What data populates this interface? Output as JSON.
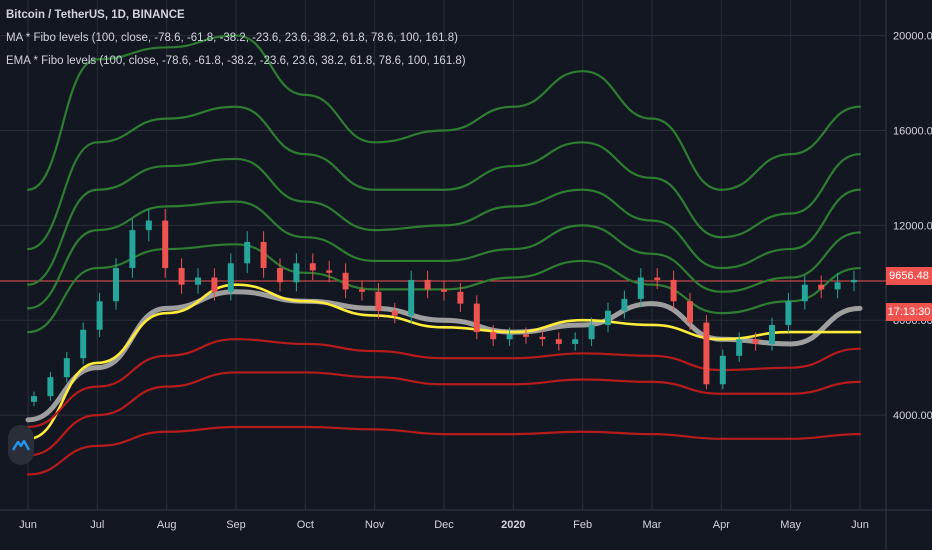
{
  "header": {
    "symbol_title": "Bitcoin / TetherUS, 1D, BINANCE",
    "indicator_ma": "MA * Fibo levels (100, close, -78.6, -61.8, -38.2, -23.6, 23.6, 38.2, 61.8, 78.6, 100, 161.8)",
    "indicator_ema": "EMA * Fibo levels (100, close, -78.6, -61.8, -38.2, -23.6, 23.6, 38.2, 61.8, 78.6, 100, 161.8)"
  },
  "price_axis": {
    "current_price": "9656.48",
    "countdown": "17:13:30"
  },
  "colors": {
    "background": "#131722",
    "grid": "#2a2e39",
    "upper_bands": "#2e7d32",
    "lower_bands": "#b71c1c",
    "ma_line": "#9e9e9e",
    "ema_line": "#ffeb3b",
    "candle_up": "#26a69a",
    "candle_down": "#ef5350",
    "price_line": "#ef5350"
  },
  "chart_data": {
    "type": "line",
    "title": "Bitcoin / TetherUS, 1D, BINANCE",
    "x_tick_labels": [
      "Jun",
      "Jul",
      "Aug",
      "Sep",
      "Oct",
      "Nov",
      "Dec",
      "2020",
      "Feb",
      "Mar",
      "Apr",
      "May",
      "Jun"
    ],
    "y_tick_labels": [
      "20000.00",
      "16000.00",
      "12000.00",
      "8000.00",
      "4000.00"
    ],
    "y_ticks": [
      20000,
      16000,
      12000,
      8000,
      4000
    ],
    "ylim": [
      0,
      21500
    ],
    "current_price": 9656.48,
    "x": [
      "Jun",
      "Jul",
      "Aug",
      "Sep",
      "Oct",
      "Nov",
      "Dec",
      "2020",
      "Feb",
      "Mar",
      "Apr",
      "May",
      "Jun"
    ],
    "series": [
      {
        "role": "upper",
        "values": [
          13500,
          19000,
          19500,
          20000,
          17500,
          15500,
          16000,
          17000,
          18500,
          16500,
          13500,
          15000,
          17000
        ]
      },
      {
        "role": "upper",
        "values": [
          11000,
          15500,
          16500,
          17000,
          15000,
          13500,
          13500,
          14500,
          15500,
          14000,
          11500,
          12500,
          15000
        ]
      },
      {
        "role": "upper",
        "values": [
          9500,
          13500,
          14500,
          14800,
          13000,
          11800,
          12000,
          12800,
          13500,
          12200,
          10200,
          11000,
          13500
        ]
      },
      {
        "role": "upper",
        "values": [
          8500,
          11800,
          12800,
          13000,
          11500,
          10500,
          10500,
          11000,
          12000,
          10800,
          9200,
          9800,
          11700
        ]
      },
      {
        "role": "upper",
        "values": [
          7500,
          10200,
          11000,
          11200,
          10000,
          9300,
          9300,
          9800,
          10500,
          9500,
          8300,
          8800,
          10200
        ]
      },
      {
        "role": "ma",
        "values": [
          3800,
          6000,
          8500,
          9200,
          8800,
          8500,
          8000,
          7500,
          7800,
          8700,
          7200,
          7000,
          8500
        ]
      },
      {
        "role": "ema",
        "values": [
          3000,
          6200,
          8300,
          9500,
          8800,
          8200,
          7700,
          7500,
          8000,
          7800,
          7200,
          7500,
          7500
        ]
      },
      {
        "role": "lower",
        "values": [
          3500,
          5200,
          6500,
          7200,
          7000,
          6700,
          6400,
          6400,
          6600,
          6500,
          5900,
          6000,
          6800
        ]
      },
      {
        "role": "lower",
        "values": [
          2300,
          4000,
          5200,
          5800,
          5800,
          5600,
          5300,
          5300,
          5500,
          5400,
          4900,
          4900,
          5400
        ]
      },
      {
        "role": "lower",
        "values": [
          1500,
          2700,
          3300,
          3500,
          3500,
          3400,
          3200,
          3200,
          3300,
          3200,
          3000,
          3000,
          3200
        ]
      }
    ],
    "candles": [
      4800,
      5600,
      6400,
      7600,
      8800,
      10200,
      11800,
      12200,
      10200,
      9500,
      9800,
      9200,
      10400,
      11300,
      10200,
      9600,
      10400,
      10100,
      10000,
      9300,
      9200,
      8400,
      8200,
      9700,
      9300,
      9200,
      8700,
      7500,
      7200,
      7400,
      7300,
      7200,
      7000,
      7200,
      7800,
      8400,
      8900,
      9800,
      9700,
      8800,
      7900,
      5300,
      6500,
      7200,
      7000,
      7800,
      8800,
      9500,
      9300,
      9600,
      9700
    ]
  }
}
